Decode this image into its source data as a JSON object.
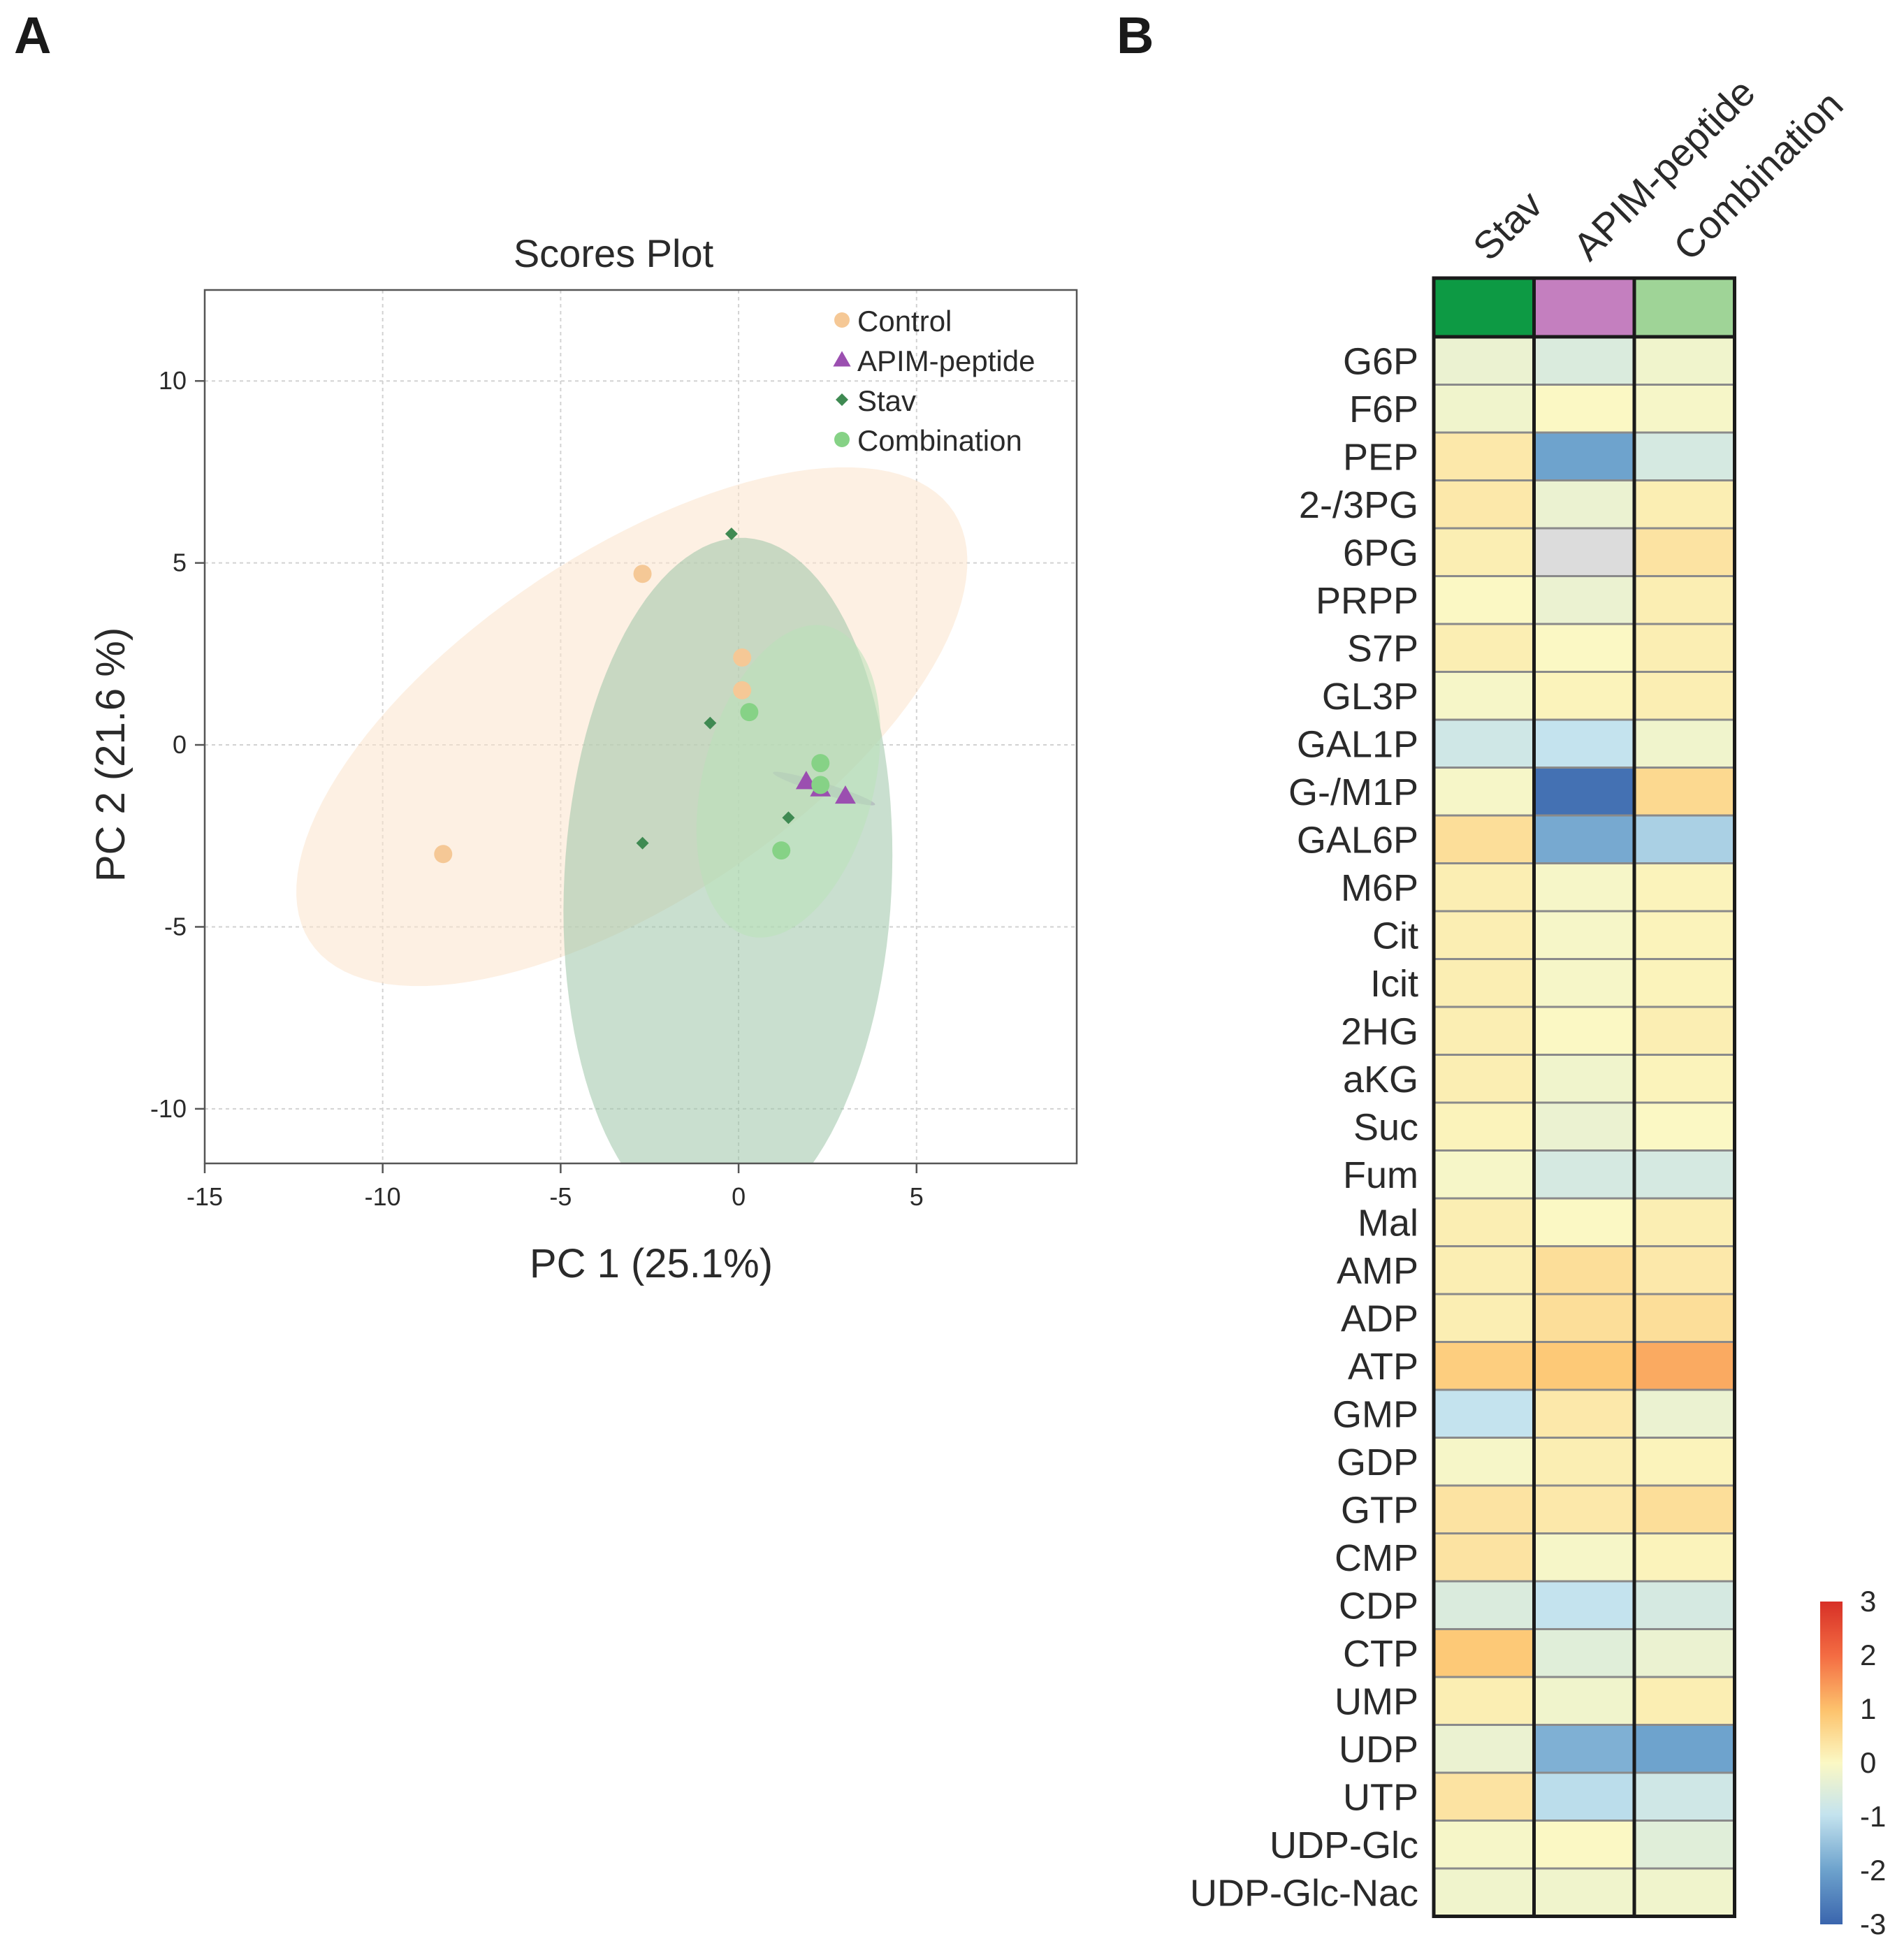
{
  "figure": {
    "panel_a_label": "A",
    "panel_b_label": "B"
  },
  "chart_data": [
    {
      "type": "scatter",
      "title": "Scores Plot",
      "xlabel": "PC 1 (25.1%)",
      "ylabel": "PC 2 (21.6 %)",
      "xlim": [
        -15,
        9.5
      ],
      "ylim": [
        -11.5,
        12.5
      ],
      "xticks": [
        -15,
        -10,
        -5,
        0,
        5
      ],
      "yticks": [
        -10,
        -5,
        0,
        5,
        10
      ],
      "grid": true,
      "legend_position": "top-right",
      "series": [
        {
          "name": "Control",
          "marker": "circle",
          "color": "#f5c896",
          "points": [
            [
              -2.7,
              4.7
            ],
            [
              0.1,
              2.4
            ],
            [
              0.1,
              1.5
            ],
            [
              -8.3,
              -3.0
            ]
          ],
          "ellipse": {
            "center": [
              -3.0,
              0.5
            ],
            "semi_major": 10.8,
            "semi_minor": 4.8,
            "angle_deg": 33,
            "color": "#fbe3cc"
          }
        },
        {
          "name": "APIM-peptide",
          "marker": "triangle",
          "color": "#9b4fb0",
          "points": [
            [
              1.9,
              -1.0
            ],
            [
              2.3,
              -1.2
            ],
            [
              3.0,
              -1.4
            ]
          ],
          "ellipse": {
            "center": [
              2.4,
              -1.2
            ],
            "semi_major": 1.5,
            "semi_minor": 0.15,
            "angle_deg": -17,
            "color": "#b889c6"
          }
        },
        {
          "name": "Stav",
          "marker": "diamond",
          "color": "#3f8a52",
          "points": [
            [
              -0.2,
              5.8
            ],
            [
              -0.8,
              0.6
            ],
            [
              -2.7,
              -2.7
            ],
            [
              1.4,
              -2.0
            ]
          ],
          "ellipse": {
            "center": [
              -0.3,
              -3.8
            ],
            "semi_major": 9.5,
            "semi_minor": 4.6,
            "angle_deg": 87,
            "color": "#9cc4a8"
          }
        },
        {
          "name": "Combination",
          "marker": "circle",
          "color": "#86d286",
          "points": [
            [
              0.3,
              0.9
            ],
            [
              2.3,
              -0.5
            ],
            [
              2.3,
              -1.1
            ],
            [
              1.2,
              -2.9
            ]
          ],
          "ellipse": {
            "center": [
              1.4,
              -1.0
            ],
            "semi_major": 4.4,
            "semi_minor": 2.4,
            "angle_deg": 75,
            "color": "#b9e2b9"
          }
        }
      ]
    },
    {
      "type": "heatmap",
      "columns": [
        "Stav",
        "APIM-peptide",
        "Combination"
      ],
      "column_colors": [
        "#0d9a44",
        "#c47fbf",
        "#9fd497"
      ],
      "rows": [
        "G6P",
        "F6P",
        "PEP",
        "2-/3PG",
        "6PG",
        "PRPP",
        "S7P",
        "GL3P",
        "GAL1P",
        "G-/M1P",
        "GAL6P",
        "M6P",
        "Cit",
        "Icit",
        "2HG",
        "aKG",
        "Suc",
        "Fum",
        "Mal",
        "AMP",
        "ADP",
        "ATP",
        "GMP",
        "GDP",
        "GTP",
        "CMP",
        "CDP",
        "CTP",
        "UMP",
        "UDP",
        "UTP",
        "UDP-Glc",
        "UDP-Glc-Nac"
      ],
      "values": [
        [
          -0.3,
          -0.6,
          -0.2
        ],
        [
          -0.2,
          0.0,
          -0.1
        ],
        [
          0.3,
          -2.0,
          -0.7
        ],
        [
          0.3,
          -0.3,
          0.2
        ],
        [
          0.2,
          null,
          0.4
        ],
        [
          0.0,
          -0.3,
          0.2
        ],
        [
          0.2,
          0.0,
          0.2
        ],
        [
          -0.1,
          0.1,
          0.2
        ],
        [
          -0.8,
          -1.0,
          -0.2
        ],
        [
          -0.1,
          -2.8,
          0.6
        ],
        [
          0.5,
          -1.9,
          -1.3
        ],
        [
          0.2,
          -0.1,
          0.1
        ],
        [
          0.2,
          -0.1,
          0.1
        ],
        [
          0.2,
          -0.1,
          0.1
        ],
        [
          0.2,
          0.0,
          0.2
        ],
        [
          0.2,
          -0.2,
          0.1
        ],
        [
          0.1,
          -0.3,
          0.0
        ],
        [
          -0.1,
          -0.7,
          -0.7
        ],
        [
          0.2,
          0.0,
          0.2
        ],
        [
          0.2,
          0.5,
          0.3
        ],
        [
          0.2,
          0.5,
          0.5
        ],
        [
          0.8,
          0.9,
          1.3
        ],
        [
          -1.0,
          0.3,
          -0.3
        ],
        [
          -0.1,
          0.2,
          0.1
        ],
        [
          0.4,
          0.3,
          0.5
        ],
        [
          0.4,
          -0.1,
          0.1
        ],
        [
          -0.6,
          -1.0,
          -0.7
        ],
        [
          0.9,
          -0.5,
          -0.3
        ],
        [
          0.2,
          -0.2,
          0.2
        ],
        [
          -0.3,
          -1.8,
          -2.0
        ],
        [
          0.4,
          -1.1,
          -0.8
        ],
        [
          -0.1,
          0.0,
          -0.5
        ],
        [
          -0.2,
          -0.2,
          -0.2
        ]
      ],
      "colorbar": {
        "min": -3,
        "max": 3,
        "ticks": [
          "3",
          "2",
          "1",
          "0",
          "-1",
          "-2",
          "-3"
        ]
      }
    }
  ]
}
